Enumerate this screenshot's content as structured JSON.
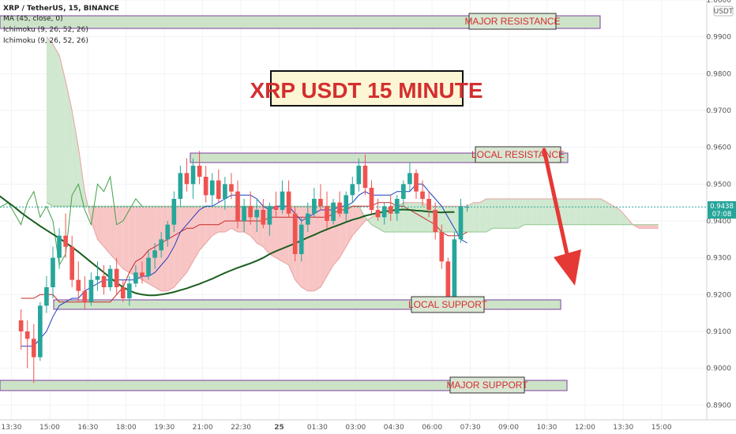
{
  "legend": {
    "symbol": "XRP / TetherUS, 15, BINANCE",
    "ma": "MA (45, close, 0)",
    "ichimoku_1": "Ichimoku (9, 26, 52, 26)",
    "ichimoku_2": "Ichimoku (9, 26, 52, 26)"
  },
  "price_badge": {
    "price": "0.9438",
    "countdown": "07:08"
  },
  "currency": "USDT",
  "title": "XRP USDT 15 MINUTE",
  "zones": {
    "major_resistance": "MAJOR RESISTANCE",
    "local_resistance": "LOCAL RESISTANCE",
    "local_support": "LOCAL SUPPORT",
    "major_support": "MAJOR SUPPORT"
  },
  "colors": {
    "bull": "#26a69a",
    "bear": "#ef5350",
    "ma": "#1b5e20",
    "tenkan": "#1e3fbf",
    "kijun": "#c62828",
    "lagging": "#43a047",
    "cloud_bear": "#f8c5c5",
    "cloud_bull": "#cfe8cf",
    "zone_fill": "#cde3c8",
    "zone_stroke": "#7b3fa0",
    "label_red": "#d32f2f",
    "arrow": "#e53935"
  },
  "chart_data": {
    "type": "candlestick",
    "ylim": [
      0.886,
      1.0
    ],
    "y_ticks": [
      {
        "v": 1.0,
        "label": "1.0000"
      },
      {
        "v": 0.99,
        "label": "0.9900"
      },
      {
        "v": 0.98,
        "label": "0.9800"
      },
      {
        "v": 0.97,
        "label": "0.9700"
      },
      {
        "v": 0.96,
        "label": "0.9600"
      },
      {
        "v": 0.95,
        "label": "0.9500"
      },
      {
        "v": 0.94,
        "label": "0.9400"
      },
      {
        "v": 0.93,
        "label": "0.9300"
      },
      {
        "v": 0.92,
        "label": "0.9200"
      },
      {
        "v": 0.91,
        "label": "0.9100"
      },
      {
        "v": 0.9,
        "label": "0.9000"
      },
      {
        "v": 0.89,
        "label": "0.8900"
      }
    ],
    "x_ticks": [
      {
        "label": "13:30",
        "i": -1.5
      },
      {
        "label": "15:00",
        "i": 4.5
      },
      {
        "label": "16:30",
        "i": 10.5
      },
      {
        "label": "18:00",
        "i": 16.5
      },
      {
        "label": "19:30",
        "i": 22.5
      },
      {
        "label": "21:00",
        "i": 28.5
      },
      {
        "label": "22:30",
        "i": 34.5
      },
      {
        "label": "25",
        "i": 40.5
      },
      {
        "label": "01:30",
        "i": 46.5
      },
      {
        "label": "03:00",
        "i": 52.5
      },
      {
        "label": "04:30",
        "i": 58.5
      },
      {
        "label": "06:00",
        "i": 64.5
      },
      {
        "label": "07:30",
        "i": 70.5
      },
      {
        "label": "09:00",
        "i": 76.5
      },
      {
        "label": "10:30",
        "i": 82.5
      },
      {
        "label": "12:00",
        "i": 88.5
      },
      {
        "label": "13:30",
        "i": 94.5
      },
      {
        "label": "15:00",
        "i": 100.5
      }
    ],
    "x_index_range": [
      -3.3,
      107.6
    ],
    "candles": [
      [
        0.913,
        0.916,
        0.905,
        0.91
      ],
      [
        0.91,
        0.913,
        0.9,
        0.908
      ],
      [
        0.908,
        0.912,
        0.896,
        0.903
      ],
      [
        0.903,
        0.918,
        0.902,
        0.917
      ],
      [
        0.917,
        0.925,
        0.915,
        0.922
      ],
      [
        0.922,
        0.933,
        0.919,
        0.93
      ],
      [
        0.93,
        0.938,
        0.927,
        0.936
      ],
      [
        0.936,
        0.942,
        0.93,
        0.933
      ],
      [
        0.933,
        0.936,
        0.922,
        0.924
      ],
      [
        0.924,
        0.929,
        0.918,
        0.921
      ],
      [
        0.921,
        0.925,
        0.916,
        0.918
      ],
      [
        0.918,
        0.926,
        0.917,
        0.924
      ],
      [
        0.924,
        0.929,
        0.921,
        0.925
      ],
      [
        0.925,
        0.928,
        0.92,
        0.922
      ],
      [
        0.922,
        0.928,
        0.921,
        0.927
      ],
      [
        0.927,
        0.93,
        0.92,
        0.922
      ],
      [
        0.922,
        0.924,
        0.918,
        0.919
      ],
      [
        0.919,
        0.925,
        0.917,
        0.923
      ],
      [
        0.923,
        0.928,
        0.922,
        0.926
      ],
      [
        0.926,
        0.929,
        0.923,
        0.925
      ],
      [
        0.925,
        0.932,
        0.924,
        0.93
      ],
      [
        0.93,
        0.934,
        0.927,
        0.932
      ],
      [
        0.932,
        0.937,
        0.93,
        0.935
      ],
      [
        0.935,
        0.94,
        0.933,
        0.939
      ],
      [
        0.939,
        0.948,
        0.937,
        0.946
      ],
      [
        0.946,
        0.955,
        0.944,
        0.953
      ],
      [
        0.953,
        0.957,
        0.948,
        0.95
      ],
      [
        0.95,
        0.957,
        0.946,
        0.955
      ],
      [
        0.955,
        0.959,
        0.95,
        0.952
      ],
      [
        0.952,
        0.955,
        0.945,
        0.947
      ],
      [
        0.947,
        0.953,
        0.944,
        0.951
      ],
      [
        0.951,
        0.954,
        0.945,
        0.946
      ],
      [
        0.946,
        0.952,
        0.943,
        0.95
      ],
      [
        0.95,
        0.953,
        0.946,
        0.948
      ],
      [
        0.948,
        0.951,
        0.938,
        0.94
      ],
      [
        0.94,
        0.946,
        0.937,
        0.944
      ],
      [
        0.944,
        0.948,
        0.939,
        0.941
      ],
      [
        0.941,
        0.946,
        0.937,
        0.943
      ],
      [
        0.943,
        0.946,
        0.938,
        0.939
      ],
      [
        0.939,
        0.945,
        0.936,
        0.944
      ],
      [
        0.944,
        0.948,
        0.941,
        0.943
      ],
      [
        0.943,
        0.951,
        0.942,
        0.948
      ],
      [
        0.948,
        0.951,
        0.941,
        0.942
      ],
      [
        0.942,
        0.944,
        0.929,
        0.931
      ],
      [
        0.931,
        0.941,
        0.929,
        0.939
      ],
      [
        0.939,
        0.945,
        0.937,
        0.942
      ],
      [
        0.942,
        0.949,
        0.941,
        0.946
      ],
      [
        0.946,
        0.95,
        0.943,
        0.944
      ],
      [
        0.944,
        0.948,
        0.938,
        0.94
      ],
      [
        0.94,
        0.946,
        0.939,
        0.945
      ],
      [
        0.945,
        0.948,
        0.941,
        0.942
      ],
      [
        0.942,
        0.948,
        0.94,
        0.947
      ],
      [
        0.947,
        0.952,
        0.945,
        0.95
      ],
      [
        0.95,
        0.957,
        0.948,
        0.955
      ],
      [
        0.955,
        0.958,
        0.947,
        0.949
      ],
      [
        0.949,
        0.951,
        0.942,
        0.943
      ],
      [
        0.943,
        0.946,
        0.94,
        0.941
      ],
      [
        0.941,
        0.945,
        0.939,
        0.944
      ],
      [
        0.944,
        0.947,
        0.94,
        0.942
      ],
      [
        0.942,
        0.947,
        0.94,
        0.946
      ],
      [
        0.946,
        0.951,
        0.944,
        0.95
      ],
      [
        0.95,
        0.956,
        0.948,
        0.953
      ],
      [
        0.953,
        0.954,
        0.946,
        0.948
      ],
      [
        0.948,
        0.951,
        0.944,
        0.946
      ],
      [
        0.946,
        0.948,
        0.941,
        0.943
      ],
      [
        0.943,
        0.945,
        0.935,
        0.937
      ],
      [
        0.937,
        0.939,
        0.927,
        0.929
      ],
      [
        0.929,
        0.93,
        0.916,
        0.918
      ],
      [
        0.918,
        0.937,
        0.917,
        0.935
      ],
      [
        0.935,
        0.946,
        0.934,
        0.944
      ],
      [
        0.9438,
        0.9445,
        0.9425,
        0.9438
      ]
    ],
    "ma45": [
      0.96,
      0.9595,
      0.9588,
      0.958,
      0.9571,
      0.9562,
      0.9552,
      0.9542,
      0.9532,
      0.9522,
      0.9511,
      0.95,
      0.9488,
      0.9476,
      0.9463,
      0.945,
      0.9437,
      0.9423,
      0.941,
      0.9398,
      0.9386,
      0.9375,
      0.9364,
      0.9353,
      0.9341,
      0.9329,
      0.9316,
      0.9302,
      0.9288,
      0.9274,
      0.926,
      0.9246,
      0.9232,
      0.922,
      0.9211,
      0.9204,
      0.92,
      0.9198,
      0.9198,
      0.92,
      0.9203,
      0.9207,
      0.9212,
      0.9217,
      0.9223,
      0.9229,
      0.9236,
      0.9243,
      0.9251,
      0.9259,
      0.9266,
      0.9273,
      0.9279,
      0.9285,
      0.9292,
      0.93,
      0.931,
      0.9318,
      0.9325,
      0.9332,
      0.9339,
      0.9347,
      0.9355,
      0.9362,
      0.937,
      0.9377,
      0.9384,
      0.939,
      0.9397,
      0.9403,
      0.9408,
      0.9414,
      0.9418,
      0.9422,
      0.9425,
      0.9428,
      0.943,
      0.9431,
      0.943,
      0.9428,
      0.9427,
      0.9425,
      0.9424,
      0.9423,
      0.9424,
      0.9424
    ],
    "ma45_start": -17,
    "tenkan": [
      0.906,
      0.906,
      0.906,
      0.908,
      0.91,
      0.914,
      0.917,
      0.918,
      0.919,
      0.919,
      0.921,
      0.922,
      0.923,
      0.924,
      0.924,
      0.924,
      0.924,
      0.924,
      0.924,
      0.925,
      0.925,
      0.926,
      0.928,
      0.93,
      0.933,
      0.937,
      0.939,
      0.941,
      0.943,
      0.944,
      0.944,
      0.945,
      0.946,
      0.947,
      0.947,
      0.947,
      0.947,
      0.946,
      0.944,
      0.943,
      0.944,
      0.944,
      0.944,
      0.942,
      0.94,
      0.941,
      0.942,
      0.943,
      0.943,
      0.943,
      0.944,
      0.944,
      0.945,
      0.947,
      0.948,
      0.947,
      0.947,
      0.947,
      0.947,
      0.948,
      0.948,
      0.948,
      0.95,
      0.95,
      0.948,
      0.946,
      0.944,
      0.941,
      0.938,
      0.935,
      0.934
    ],
    "kijun": [
      0.919,
      0.919,
      0.919,
      0.92,
      0.92,
      0.92,
      0.918,
      0.918,
      0.918,
      0.918,
      0.918,
      0.918,
      0.918,
      0.918,
      0.918,
      0.92,
      0.922,
      0.926,
      0.929,
      0.93,
      0.932,
      0.933,
      0.934,
      0.935,
      0.936,
      0.937,
      0.938,
      0.938,
      0.939,
      0.939,
      0.939,
      0.939,
      0.94,
      0.94,
      0.94,
      0.94,
      0.94,
      0.94,
      0.94,
      0.941,
      0.941,
      0.941,
      0.941,
      0.941,
      0.941,
      0.941,
      0.941,
      0.941,
      0.941,
      0.942,
      0.943,
      0.943,
      0.944,
      0.944,
      0.944,
      0.944,
      0.945,
      0.945,
      0.945,
      0.944,
      0.944,
      0.943,
      0.942,
      0.941,
      0.94,
      0.939,
      0.937,
      0.936,
      0.936,
      0.936,
      0.937
    ],
    "lagging_start": -26,
    "lagging": [
      0.906,
      0.909,
      0.912,
      0.917,
      0.921,
      0.925,
      0.932,
      0.935,
      0.938,
      0.944,
      0.947,
      0.951,
      0.953,
      0.948,
      0.951,
      0.947,
      0.949,
      0.955,
      0.948,
      0.95,
      0.946,
      0.952,
      0.943,
      0.944,
      0.945,
      0.942,
      0.939,
      0.945,
      0.948,
      0.941,
      0.944,
      0.94,
      0.928,
      0.931,
      0.947,
      0.95,
      0.943,
      0.939,
      0.95,
      0.948,
      0.952,
      0.939,
      0.94,
      0.943,
      0.946,
      0.944
    ],
    "cloud_start": 4,
    "span_a": [
      0.99,
      0.988,
      0.985,
      0.978,
      0.97,
      0.96,
      0.948,
      0.94,
      0.935,
      0.933,
      0.931,
      0.929,
      0.927,
      0.926,
      0.925,
      0.924,
      0.923,
      0.922,
      0.921,
      0.921,
      0.922,
      0.924,
      0.926,
      0.929,
      0.932,
      0.934,
      0.936,
      0.937,
      0.937,
      0.938,
      0.937,
      0.937,
      0.936,
      0.934,
      0.933,
      0.931,
      0.93,
      0.929,
      0.928,
      0.924,
      0.922,
      0.921,
      0.921,
      0.922,
      0.925,
      0.928,
      0.93,
      0.933,
      0.936,
      0.938,
      0.94,
      0.941,
      0.942,
      0.943,
      0.944,
      0.944,
      0.945,
      0.945,
      0.945,
      0.945,
      0.944,
      0.944,
      0.944,
      0.944,
      0.944,
      0.944,
      0.944,
      0.945,
      0.945,
      0.946,
      0.946,
      0.946,
      0.946,
      0.946,
      0.946,
      0.946,
      0.946,
      0.946,
      0.946,
      0.946,
      0.946,
      0.946,
      0.946,
      0.946,
      0.946,
      0.946,
      0.946,
      0.946,
      0.945,
      0.944,
      0.943,
      0.941,
      0.939,
      0.938,
      0.938,
      0.938,
      0.938
    ],
    "span_b": [
      0.945,
      0.944,
      0.944,
      0.944,
      0.944,
      0.944,
      0.944,
      0.944,
      0.944,
      0.944,
      0.944,
      0.944,
      0.944,
      0.944,
      0.944,
      0.944,
      0.944,
      0.944,
      0.944,
      0.944,
      0.944,
      0.944,
      0.944,
      0.944,
      0.944,
      0.944,
      0.944,
      0.944,
      0.944,
      0.944,
      0.944,
      0.944,
      0.944,
      0.944,
      0.944,
      0.944,
      0.944,
      0.944,
      0.944,
      0.944,
      0.944,
      0.944,
      0.944,
      0.944,
      0.944,
      0.944,
      0.944,
      0.944,
      0.944,
      0.944,
      0.941,
      0.939,
      0.938,
      0.937,
      0.937,
      0.937,
      0.937,
      0.937,
      0.937,
      0.937,
      0.937,
      0.937,
      0.937,
      0.937,
      0.937,
      0.937,
      0.937,
      0.937,
      0.937,
      0.937,
      0.938,
      0.938,
      0.938,
      0.938,
      0.938,
      0.939,
      0.939,
      0.939,
      0.939,
      0.939,
      0.939,
      0.939,
      0.939,
      0.939,
      0.939,
      0.939,
      0.939,
      0.939,
      0.939,
      0.939,
      0.939,
      0.939,
      0.939,
      0.939,
      0.939,
      0.939,
      0.939
    ]
  }
}
